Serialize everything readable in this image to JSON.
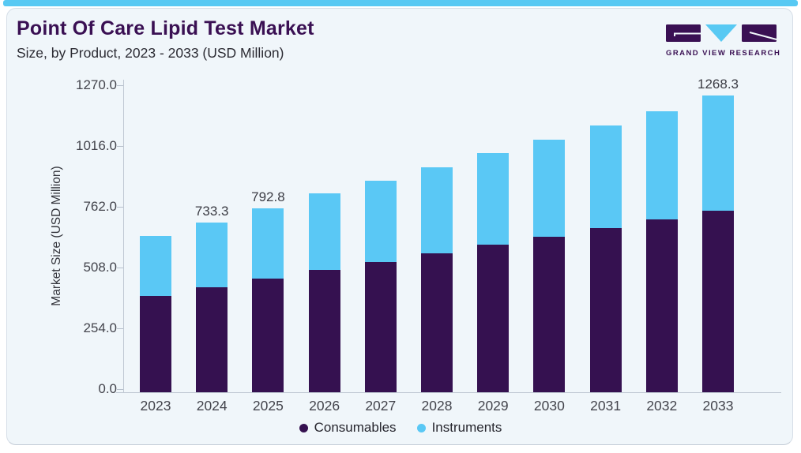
{
  "header": {
    "title": "Point Of Care Lipid Test Market",
    "subtitle": "Size, by Product, 2023 - 2033 (USD Million)",
    "logo_text": "GRAND VIEW RESEARCH"
  },
  "chart_data": {
    "type": "bar",
    "stacked": true,
    "title": "Point Of Care Lipid Test Market",
    "subtitle": "Size, by Product, 2023 - 2033 (USD Million)",
    "categories": [
      "2023",
      "2024",
      "2025",
      "2026",
      "2027",
      "2028",
      "2029",
      "2030",
      "2031",
      "2032",
      "2033"
    ],
    "series": [
      {
        "name": "Consumables",
        "color": "#351150",
        "values": [
          421,
          458,
          495,
          530,
          565,
          601,
          638,
          672,
          709,
          745,
          782
        ]
      },
      {
        "name": "Instruments",
        "color": "#5ac8f5",
        "values": [
          254,
          275.3,
          297.8,
          326,
          344,
          365,
          388,
          411,
          434,
          458,
          486.3
        ]
      }
    ],
    "totals": [
      675,
      733.3,
      792.8,
      856,
      909,
      966,
      1026,
      1083,
      1143,
      1203,
      1268.3
    ],
    "bar_labels": [
      "",
      "733.3",
      "792.8",
      "",
      "",
      "",
      "",
      "",
      "",
      "",
      "1268.3"
    ],
    "ylabel": "Market Size (USD Million)",
    "yticks": [
      "0.0",
      "254.0",
      "508.0",
      "762.0",
      "1016.0",
      "1270.0"
    ],
    "ytick_values": [
      0,
      254,
      508,
      762,
      1016,
      1270
    ],
    "ylim": [
      0,
      1270
    ],
    "xlabel": "",
    "grid": false,
    "legend_position": "bottom"
  },
  "colors": {
    "accent_strip": "#58c9f3",
    "card_background": "#f0f6fa",
    "title": "#3a1053",
    "consumables": "#351150",
    "instruments": "#5ac8f5",
    "axis": "#bfc8d3",
    "tick_text": "#43444c"
  }
}
